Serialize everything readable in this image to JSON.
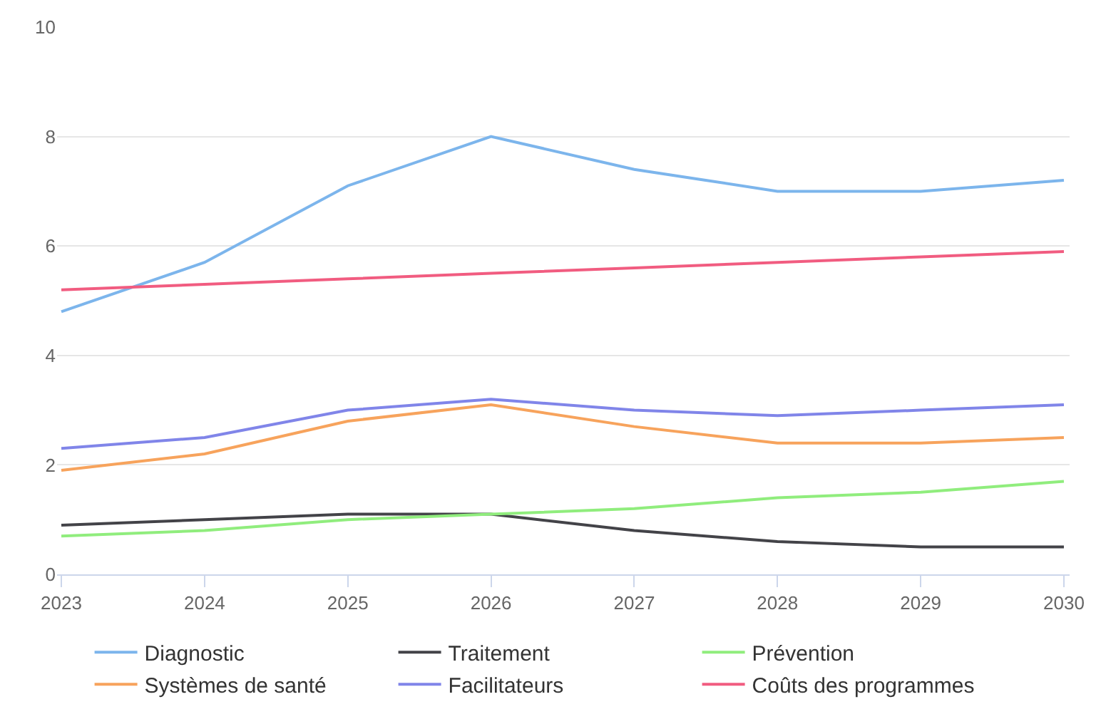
{
  "chart_data": {
    "type": "line",
    "x": [
      2023,
      2024,
      2025,
      2026,
      2027,
      2028,
      2029,
      2030
    ],
    "xlim": [
      2022.97,
      2030.04
    ],
    "xticks": [
      2023,
      2024,
      2025,
      2026,
      2027,
      2028,
      2029,
      2030
    ],
    "ylim": [
      0,
      10
    ],
    "yticks": [
      0,
      2,
      4,
      6,
      8,
      10
    ],
    "grid": "y",
    "legend": "bottom",
    "marker": "none",
    "line_style": "solid",
    "series": [
      {
        "name": "Diagnostic",
        "color": "#7cb5ec",
        "values": [
          4.8,
          5.7,
          7.1,
          8.0,
          7.4,
          7.0,
          7.0,
          7.2
        ]
      },
      {
        "name": "Traitement",
        "color": "#434348",
        "values": [
          0.9,
          1.0,
          1.1,
          1.1,
          0.8,
          0.6,
          0.5,
          0.5
        ]
      },
      {
        "name": "Prévention",
        "color": "#90ed7d",
        "values": [
          0.7,
          0.8,
          1.0,
          1.1,
          1.2,
          1.4,
          1.5,
          1.7
        ]
      },
      {
        "name": "Systèmes de santé",
        "color": "#f7a35c",
        "values": [
          1.9,
          2.2,
          2.8,
          3.1,
          2.7,
          2.4,
          2.4,
          2.5
        ]
      },
      {
        "name": "Facilitateurs",
        "color": "#8085e9",
        "values": [
          2.3,
          2.5,
          3.0,
          3.2,
          3.0,
          2.9,
          3.0,
          3.1
        ]
      },
      {
        "name": "Coûts des programmes",
        "color": "#f15c80",
        "values": [
          5.2,
          5.3,
          5.4,
          5.5,
          5.6,
          5.7,
          5.8,
          5.9
        ]
      }
    ]
  }
}
